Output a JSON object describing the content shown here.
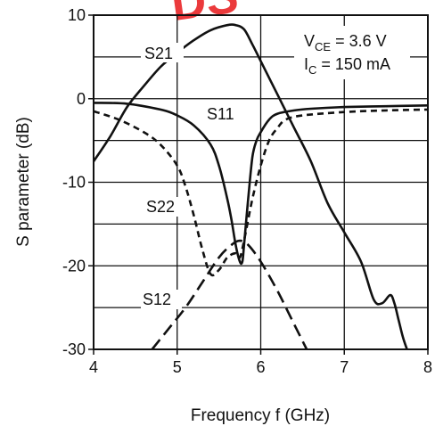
{
  "chart_data": {
    "type": "line",
    "title": "",
    "xlabel": "Frequency f (GHz)",
    "ylabel": "S parameter (dB)",
    "xlim": [
      4,
      8
    ],
    "ylim": [
      -30,
      10
    ],
    "xticks": [
      4,
      5,
      6,
      7,
      8
    ],
    "yticks": [
      -30,
      -20,
      -10,
      0,
      10
    ],
    "xtick_labels": [
      "4",
      "5",
      "6",
      "7",
      "8"
    ],
    "ytick_labels": [
      "-30",
      "-20",
      "-10",
      "0",
      "10"
    ],
    "grid": true,
    "legend": "none",
    "conditions": {
      "vce": {
        "main": "V",
        "sub": "CE",
        "rest": " = 3.6 V"
      },
      "ic": {
        "main": "I",
        "sub": "C",
        "rest": " = 150 mA"
      }
    },
    "series": [
      {
        "name": "S21",
        "style": "solid",
        "x": [
          4.0,
          4.2,
          4.4,
          4.6,
          4.8,
          5.0,
          5.2,
          5.4,
          5.6,
          5.7,
          5.8,
          5.9,
          6.0,
          6.2,
          6.4,
          6.6,
          6.8,
          7.0,
          7.2,
          7.35,
          7.45,
          7.55,
          7.6,
          7.65,
          7.7,
          7.75
        ],
        "y": [
          -7.5,
          -4.5,
          -1.0,
          1.5,
          3.8,
          5.5,
          7.0,
          8.2,
          8.8,
          8.8,
          8.3,
          6.5,
          4.5,
          0.5,
          -3.5,
          -7.5,
          -12.5,
          -16.0,
          -19.5,
          -24.0,
          -24.5,
          -23.5,
          -24.5,
          -26.5,
          -28.5,
          -30.0
        ]
      },
      {
        "name": "S11",
        "style": "solid",
        "x": [
          4.0,
          4.4,
          4.8,
          5.0,
          5.2,
          5.4,
          5.5,
          5.6,
          5.65,
          5.7,
          5.75,
          5.78,
          5.8,
          5.85,
          5.9,
          5.95,
          6.0,
          6.1,
          6.2,
          6.4,
          6.6,
          7.0,
          7.5,
          8.0
        ],
        "y": [
          -0.5,
          -0.6,
          -1.3,
          -2.0,
          -3.2,
          -5.5,
          -8.0,
          -12.0,
          -14.5,
          -17.5,
          -19.5,
          -19.5,
          -17.5,
          -12.0,
          -7.0,
          -5.0,
          -4.0,
          -2.5,
          -1.8,
          -1.4,
          -1.2,
          -1.0,
          -0.9,
          -0.8
        ]
      },
      {
        "name": "S22",
        "style": "short-dash",
        "x": [
          4.0,
          4.3,
          4.6,
          4.8,
          5.0,
          5.1,
          5.2,
          5.3,
          5.4,
          5.5,
          5.6,
          5.7,
          5.75,
          5.8,
          5.9,
          6.0,
          6.1,
          6.2,
          6.3,
          6.5,
          7.0,
          7.5,
          8.0
        ],
        "y": [
          -1.5,
          -2.5,
          -4.0,
          -5.5,
          -8.0,
          -10.5,
          -14.0,
          -18.0,
          -21.0,
          -20.5,
          -19.0,
          -18.5,
          -19.0,
          -17.0,
          -12.0,
          -8.0,
          -5.0,
          -3.5,
          -2.5,
          -2.0,
          -1.6,
          -1.4,
          -1.3
        ]
      },
      {
        "name": "S12",
        "style": "long-dash",
        "x": [
          4.7,
          4.9,
          5.1,
          5.3,
          5.5,
          5.65,
          5.75,
          5.85,
          6.0,
          6.2,
          6.4,
          6.55
        ],
        "y": [
          -30.0,
          -27.5,
          -25.0,
          -22.0,
          -19.0,
          -17.5,
          -17.0,
          -17.5,
          -19.5,
          -23.0,
          -27.0,
          -30.0
        ]
      }
    ]
  },
  "series_labels": {
    "S21": "S21",
    "S11": "S11",
    "S22": "S22",
    "S12": "S12"
  },
  "watermark": "DS"
}
